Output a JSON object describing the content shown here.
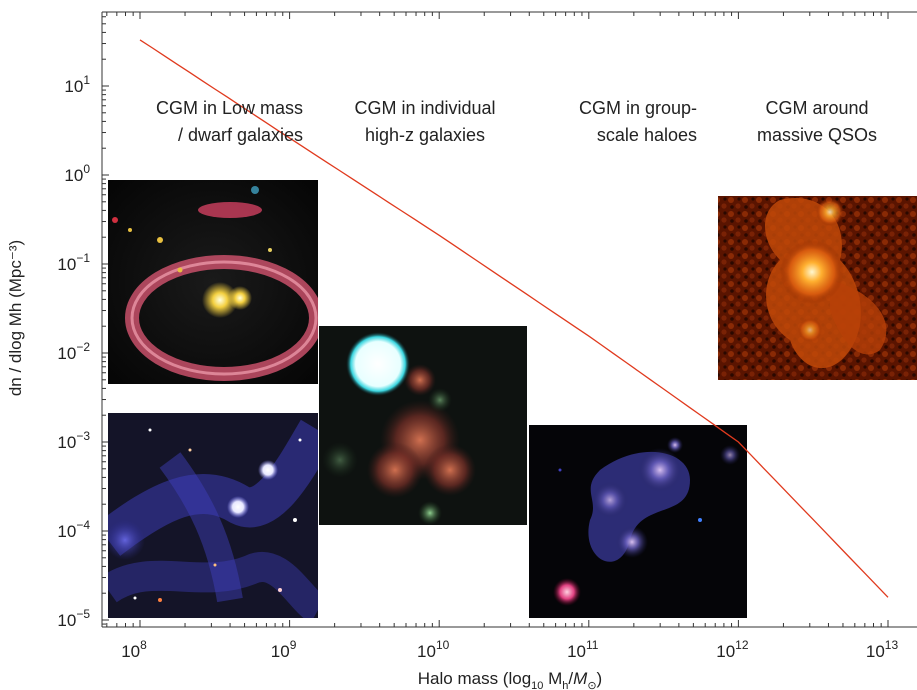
{
  "chart_data": {
    "type": "line",
    "xlabel": {
      "prefix": "Halo mass (log",
      "sub1": "10",
      "mid": " M",
      "sub2": "h",
      "slash": "/",
      "italic": "M",
      "sub3": "⊙",
      "suffix": ")"
    },
    "ylabel": "dn / dlog Mh (Mpc⁻³)",
    "x_scale": "log",
    "y_scale": "log",
    "xlim": [
      100000000.0,
      10000000000000.0
    ],
    "ylim": [
      1e-05,
      100.0
    ],
    "x_ticks": [
      {
        "value": 100000000.0,
        "base": "10",
        "exp": "8"
      },
      {
        "value": 1000000000.0,
        "base": "10",
        "exp": "9"
      },
      {
        "value": 10000000000.0,
        "base": "10",
        "exp": "10"
      },
      {
        "value": 100000000000.0,
        "base": "10",
        "exp": "11"
      },
      {
        "value": 1000000000000.0,
        "base": "10",
        "exp": "12"
      },
      {
        "value": 10000000000000.0,
        "base": "10",
        "exp": "13"
      }
    ],
    "y_ticks": [
      {
        "value": 1e-05,
        "base": "10",
        "exp": "−5"
      },
      {
        "value": 0.0001,
        "base": "10",
        "exp": "−4"
      },
      {
        "value": 0.001,
        "base": "10",
        "exp": "−3"
      },
      {
        "value": 0.01,
        "base": "10",
        "exp": "−2"
      },
      {
        "value": 0.1,
        "base": "10",
        "exp": "−1"
      },
      {
        "value": 1.0,
        "base": "10",
        "exp": "0"
      },
      {
        "value": 10.0,
        "base": "10",
        "exp": "1"
      }
    ],
    "series": [
      {
        "color": "#e03a1e",
        "x": [
          100000000.0,
          1000000000.0,
          10000000000.0,
          100000000000.0,
          1000000000000.0,
          10000000000000.0
        ],
        "y": [
          33,
          2.6,
          0.21,
          0.0155,
          0.001,
          1.8e-05
        ]
      }
    ],
    "annotations": [
      {
        "lines": [
          "CGM in Low mass",
          "/ dwarf galaxies"
        ],
        "anchor": "end"
      },
      {
        "lines": [
          "CGM in individual",
          "high-z galaxies"
        ],
        "anchor": "middle"
      },
      {
        "lines": [
          "CGM in group-",
          "scale haloes"
        ],
        "anchor": "end"
      },
      {
        "lines": [
          "CGM around",
          "massive QSOs"
        ],
        "anchor": "middle"
      }
    ],
    "colors": {
      "curve": "#e03a1e",
      "axis": "#333333"
    }
  },
  "images": [
    {
      "name": "lensing-ring-image",
      "palette": "black-ring"
    },
    {
      "name": "cosmic-web-image",
      "palette": "blue-field"
    },
    {
      "name": "high-z-galaxy-image",
      "palette": "dark-cyan-star"
    },
    {
      "name": "group-halo-image",
      "palette": "dark-blue-blob"
    },
    {
      "name": "qso-nebula-image",
      "palette": "orange-nebula"
    }
  ]
}
